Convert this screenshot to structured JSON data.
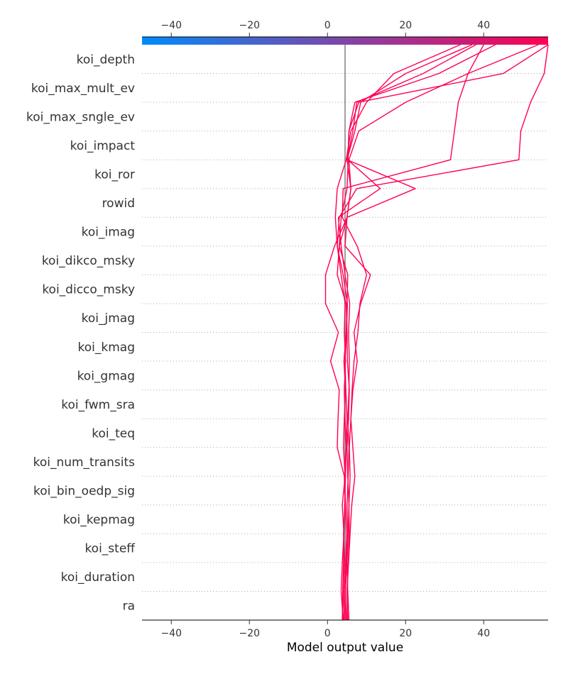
{
  "chart_data": {
    "type": "line",
    "subtype": "shap_decision_plot",
    "xlabel": "Model output value",
    "xlim": [
      -47.5,
      56.5
    ],
    "xticks": [
      -40,
      -20,
      0,
      20,
      40
    ],
    "base_value": 4.5,
    "colorbar": {
      "range": [
        -47.5,
        56.5
      ],
      "from_color": "#008bfb",
      "to_color": "#ff0052"
    },
    "line_color": "#ff0052",
    "features": [
      "ra",
      "koi_duration",
      "koi_steff",
      "koi_kepmag",
      "koi_bin_oedp_sig",
      "koi_num_transits",
      "koi_teq",
      "koi_fwm_sra",
      "koi_gmag",
      "koi_kmag",
      "koi_jmag",
      "koi_dicco_msky",
      "koi_dikco_msky",
      "koi_imag",
      "rowid",
      "koi_ror",
      "koi_impact",
      "koi_max_sngle_ev",
      "koi_max_mult_ev",
      "koi_depth"
    ],
    "series": [
      {
        "values": [
          4.0,
          3.5,
          3.8,
          4.2,
          3.8,
          4.5,
          4.1,
          4.3,
          4.6,
          4.2,
          4.8,
          5.0,
          5.2,
          3.0,
          3.5,
          5.0,
          5.3,
          5.5,
          8.0,
          45.0,
          56.5
        ]
      },
      {
        "values": [
          5.5,
          5.2,
          5.0,
          5.3,
          5.5,
          5.2,
          5.0,
          5.4,
          5.6,
          5.1,
          5.0,
          4.8,
          2.5,
          3.0,
          5.0,
          6.0,
          5.5,
          8.0,
          20.0,
          36.0,
          54.0
        ]
      },
      {
        "values": [
          4.5,
          4.3,
          4.7,
          4.9,
          4.6,
          4.4,
          4.8,
          5.0,
          4.7,
          4.5,
          4.9,
          5.1,
          4.0,
          2.5,
          3.0,
          7.5,
          49.0,
          49.5,
          52.0,
          55.5,
          56.5
        ]
      },
      {
        "values": [
          5.0,
          5.1,
          5.3,
          5.6,
          5.5,
          5.8,
          5.6,
          6.0,
          6.3,
          6.8,
          7.8,
          8.3,
          10.0,
          7.6,
          3.8,
          4.0,
          31.5,
          32.5,
          33.5,
          36.0,
          40.0
        ]
      },
      {
        "values": [
          4.2,
          4.0,
          4.4,
          4.1,
          4.5,
          4.3,
          2.5,
          2.7,
          3.0,
          0.8,
          2.8,
          -0.5,
          -0.5,
          1.8,
          5.0,
          6.0,
          5.0,
          7.0,
          8.5,
          20.0,
          37.0
        ]
      },
      {
        "values": [
          3.8,
          3.9,
          4.1,
          4.2,
          4.4,
          4.6,
          4.8,
          4.5,
          4.3,
          4.6,
          4.3,
          4.5,
          3.5,
          2.5,
          2.0,
          2.5,
          4.8,
          6.0,
          10.0,
          17.0,
          34.0
        ]
      },
      {
        "values": [
          5.2,
          5.0,
          5.4,
          5.8,
          6.2,
          7.0,
          6.5,
          6.0,
          6.5,
          7.6,
          6.8,
          8.5,
          11.0,
          4.5,
          5.0,
          22.5,
          5.0,
          6.5,
          7.5,
          24.5,
          38.0
        ]
      },
      {
        "values": [
          4.8,
          4.6,
          4.9,
          5.2,
          5.0,
          5.3,
          5.5,
          5.2,
          5.5,
          5.6,
          5.4,
          5.7,
          4.5,
          3.5,
          2.8,
          13.5,
          5.2,
          5.5,
          7.0,
          28.5,
          43.0
        ]
      }
    ]
  }
}
